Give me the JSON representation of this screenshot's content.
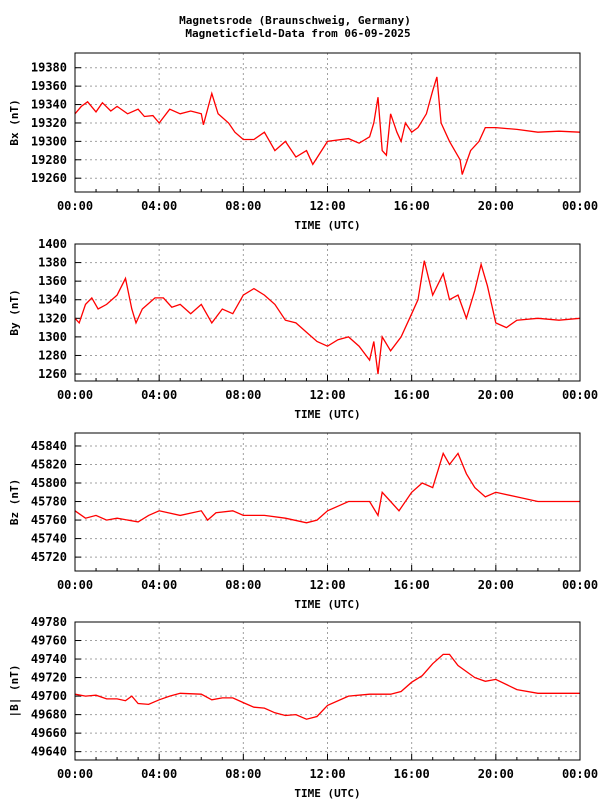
{
  "title": {
    "line1": "Magnetsrode (Braunschweig, Germany)",
    "line2": "Magneticfield-Data from 06-09-2025"
  },
  "colors": {
    "series": "#ff0000",
    "grid": "#a0a0a0",
    "axis": "#000000"
  },
  "chart_data": [
    {
      "type": "line",
      "ylabel": "Bx (nT)",
      "xlabel": "TIME (UTC)",
      "xlim": [
        0,
        24
      ],
      "ylim": [
        19245,
        19396
      ],
      "xticks": [
        "00:00",
        "04:00",
        "08:00",
        "12:00",
        "16:00",
        "20:00",
        "00:00"
      ],
      "yticks": [
        19260,
        19280,
        19300,
        19320,
        19340,
        19360,
        19380
      ],
      "grid": true,
      "series": [
        {
          "name": "Bx",
          "x": [
            0,
            0.3,
            0.6,
            1,
            1.3,
            1.7,
            2,
            2.5,
            3,
            3.3,
            3.7,
            4,
            4.5,
            5,
            5.5,
            6,
            6.1,
            6.5,
            6.8,
            7.3,
            7.6,
            8,
            8.5,
            9,
            9.5,
            10,
            10.5,
            11,
            11.3,
            12,
            13,
            13.5,
            14,
            14.2,
            14.4,
            14.6,
            14.8,
            15,
            15.3,
            15.5,
            15.7,
            16,
            16.3,
            16.7,
            17,
            17.2,
            17.4,
            17.8,
            18.3,
            18.4,
            18.8,
            19.2,
            19.5,
            20,
            21,
            22,
            23,
            24
          ],
          "values": [
            19330,
            19338,
            19343,
            19332,
            19342,
            19333,
            19338,
            19330,
            19335,
            19327,
            19328,
            19320,
            19335,
            19330,
            19333,
            19330,
            19318,
            19352,
            19330,
            19320,
            19310,
            19302,
            19302,
            19310,
            19290,
            19300,
            19283,
            19290,
            19275,
            19300,
            19303,
            19298,
            19305,
            19320,
            19348,
            19290,
            19285,
            19330,
            19310,
            19300,
            19320,
            19310,
            19315,
            19330,
            19355,
            19370,
            19320,
            19300,
            19280,
            19264,
            19290,
            19300,
            19315,
            19315,
            19313,
            19310,
            19311,
            19310
          ]
        }
      ]
    },
    {
      "type": "line",
      "ylabel": "By (nT)",
      "xlabel": "TIME (UTC)",
      "xlim": [
        0,
        24
      ],
      "ylim": [
        1252.5,
        1400
      ],
      "xticks": [
        "00:00",
        "04:00",
        "08:00",
        "12:00",
        "16:00",
        "20:00",
        "00:00"
      ],
      "yticks": [
        1260,
        1280,
        1300,
        1320,
        1340,
        1360,
        1380,
        1400
      ],
      "grid": true,
      "series": [
        {
          "name": "By",
          "x": [
            0,
            0.2,
            0.5,
            0.8,
            1.1,
            1.5,
            2,
            2.4,
            2.7,
            2.9,
            3.2,
            3.8,
            4.2,
            4.6,
            5,
            5.5,
            6,
            6.5,
            7,
            7.5,
            8,
            8.5,
            9,
            9.5,
            10,
            10.5,
            11,
            11.5,
            12,
            12.5,
            13,
            13.5,
            14,
            14.2,
            14.4,
            14.6,
            15,
            15.5,
            16,
            16.3,
            16.6,
            17,
            17.5,
            17.8,
            18.2,
            18.6,
            19,
            19.3,
            19.6,
            20,
            20.5,
            21,
            22,
            23,
            24
          ],
          "values": [
            1320,
            1315,
            1335,
            1342,
            1330,
            1335,
            1345,
            1363,
            1330,
            1315,
            1330,
            1342,
            1342,
            1332,
            1335,
            1325,
            1335,
            1315,
            1330,
            1325,
            1345,
            1352,
            1345,
            1335,
            1318,
            1315,
            1305,
            1295,
            1290,
            1297,
            1300,
            1290,
            1275,
            1295,
            1260,
            1300,
            1285,
            1300,
            1325,
            1340,
            1382,
            1345,
            1368,
            1340,
            1345,
            1320,
            1350,
            1378,
            1355,
            1315,
            1310,
            1318,
            1320,
            1318,
            1320
          ]
        }
      ]
    },
    {
      "type": "line",
      "ylabel": "Bz (nT)",
      "xlabel": "TIME (UTC)",
      "xlim": [
        0,
        24
      ],
      "ylim": [
        45705,
        45854
      ],
      "xticks": [
        "00:00",
        "04:00",
        "08:00",
        "12:00",
        "16:00",
        "20:00",
        "00:00"
      ],
      "yticks": [
        45720,
        45740,
        45760,
        45780,
        45800,
        45820,
        45840
      ],
      "grid": true,
      "series": [
        {
          "name": "Bz",
          "x": [
            0,
            0.5,
            1,
            1.5,
            2,
            3,
            3.5,
            4,
            5,
            6,
            6.3,
            6.7,
            7.5,
            8,
            9,
            10,
            11,
            11.5,
            12,
            12.5,
            13,
            14,
            14.4,
            14.6,
            15,
            15.4,
            16,
            16.5,
            17,
            17.5,
            17.8,
            18.2,
            18.6,
            19,
            19.5,
            20,
            21,
            22,
            23,
            24
          ],
          "values": [
            45770,
            45762,
            45765,
            45760,
            45762,
            45758,
            45765,
            45770,
            45765,
            45770,
            45760,
            45768,
            45770,
            45765,
            45765,
            45762,
            45757,
            45760,
            45770,
            45775,
            45780,
            45780,
            45765,
            45790,
            45780,
            45770,
            45790,
            45800,
            45795,
            45832,
            45820,
            45832,
            45810,
            45795,
            45785,
            45790,
            45785,
            45780,
            45780,
            45780
          ]
        }
      ]
    },
    {
      "type": "line",
      "ylabel": "|B| (nT)",
      "xlabel": "TIME (UTC)",
      "xlim": [
        0,
        24
      ],
      "ylim": [
        49631,
        49780
      ],
      "xticks": [
        "00:00",
        "04:00",
        "08:00",
        "12:00",
        "16:00",
        "20:00",
        "00:00"
      ],
      "yticks": [
        49640,
        49660,
        49680,
        49700,
        49720,
        49740,
        49760,
        49780
      ],
      "grid": true,
      "series": [
        {
          "name": "|B|",
          "x": [
            0,
            0.5,
            1,
            1.5,
            2,
            2.4,
            2.7,
            3,
            3.5,
            4,
            4.5,
            5,
            6,
            6.5,
            7,
            7.5,
            8,
            8.5,
            9,
            9.5,
            10,
            10.5,
            11,
            11.5,
            12,
            13,
            14,
            15,
            15.5,
            16,
            16.5,
            17,
            17.5,
            17.8,
            18.2,
            19,
            19.5,
            20,
            21,
            22,
            23,
            24
          ],
          "values": [
            49702,
            49700,
            49701,
            49697,
            49697,
            49695,
            49700,
            49692,
            49691,
            49696,
            49700,
            49703,
            49702,
            49696,
            49698,
            49698,
            49693,
            49688,
            49687,
            49682,
            49679,
            49680,
            49675,
            49678,
            49690,
            49700,
            49702,
            49702,
            49705,
            49715,
            49722,
            49735,
            49745,
            49745,
            49733,
            49720,
            49716,
            49718,
            49707,
            49703,
            49703,
            49703
          ]
        }
      ]
    }
  ]
}
